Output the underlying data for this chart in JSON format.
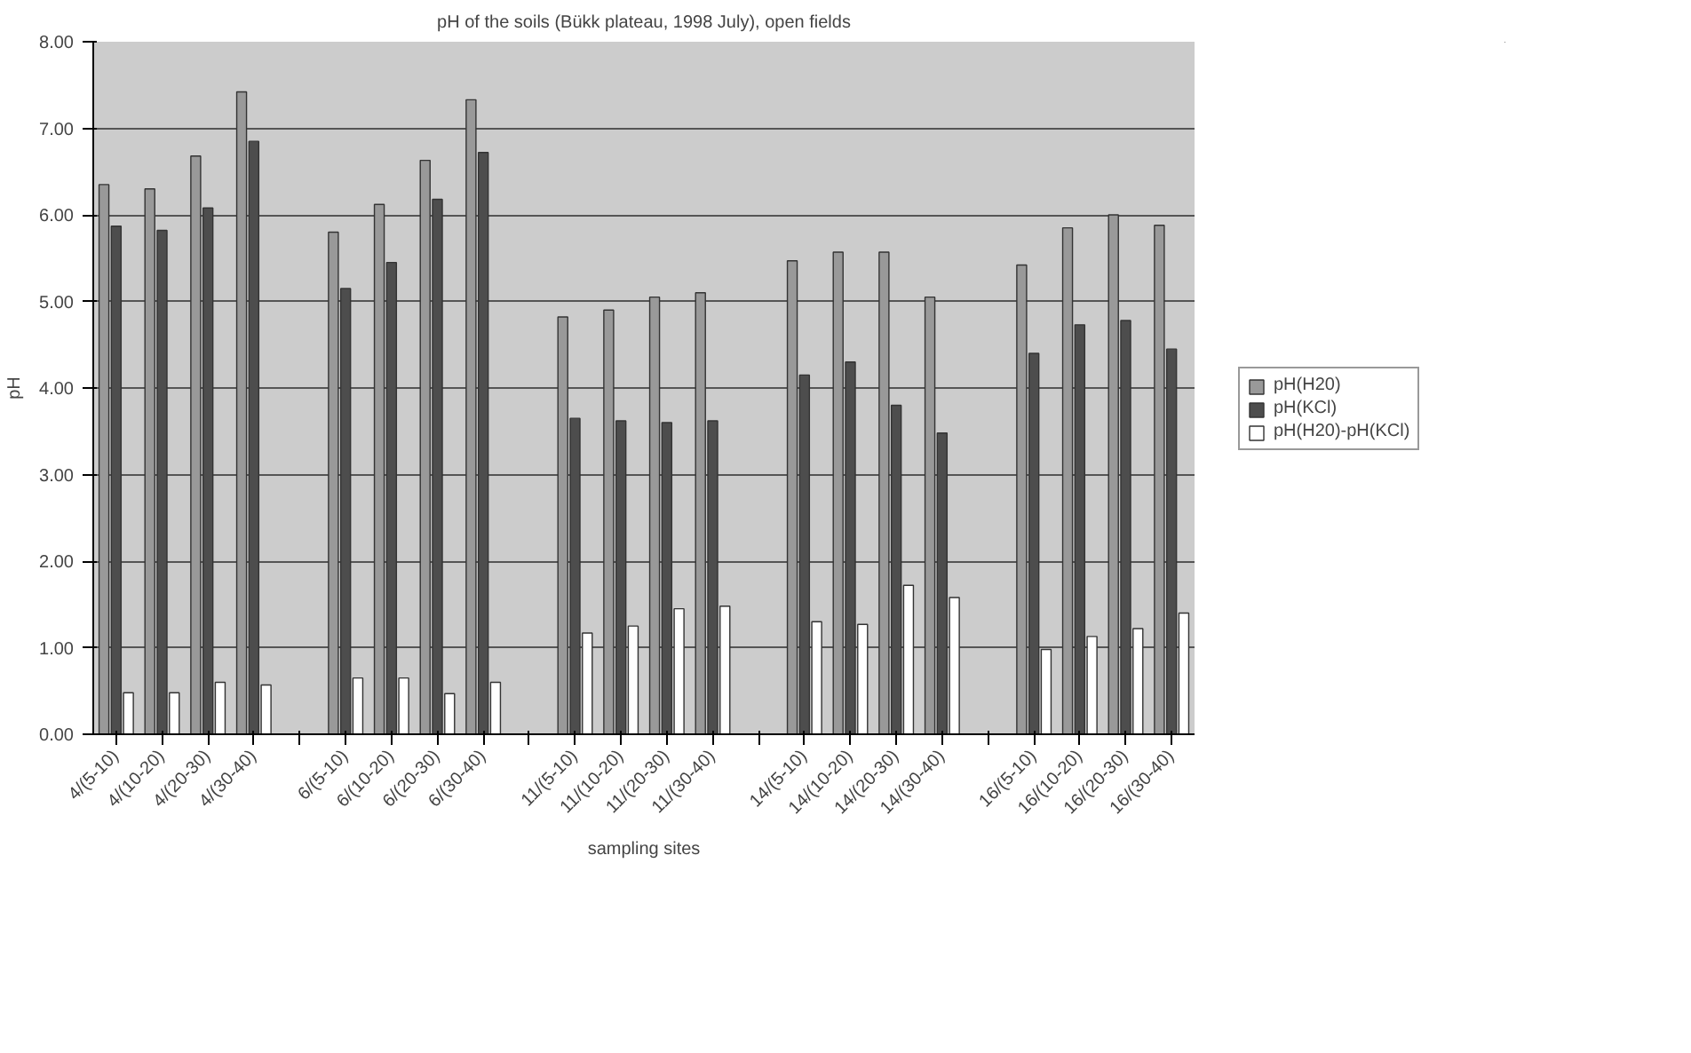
{
  "chart_data": {
    "type": "bar",
    "title": "pH of the soils (Bükk plateau, 1998 July), open fields",
    "xlabel": "sampling sites",
    "ylabel": "pH",
    "categories": [
      "4/(5-10)",
      "4/(10-20)",
      "4/(20-30)",
      "4/(30-40)",
      null,
      "6/(5-10)",
      "6/(10-20)",
      "6/(20-30)",
      "6/(30-40)",
      null,
      "11/(5-10)",
      "11/(10-20)",
      "11/(20-30)",
      "11/(30-40)",
      null,
      "14/(5-10)",
      "14/(10-20)",
      "14/(20-30)",
      "14/(30-40)",
      null,
      "16/(5-10)",
      "16/(10-20)",
      "16/(20-30)",
      "16/(30-40)"
    ],
    "series": [
      {
        "name": "pH(H20)",
        "color": "#999999",
        "values": [
          6.35,
          6.3,
          6.68,
          7.42,
          null,
          5.8,
          6.12,
          6.63,
          7.33,
          null,
          4.82,
          4.9,
          5.05,
          5.1,
          null,
          5.47,
          5.57,
          5.57,
          5.05,
          null,
          5.42,
          5.85,
          6.0,
          5.88
        ]
      },
      {
        "name": "pH(KCl)",
        "color": "#4d4d4d",
        "values": [
          5.87,
          5.82,
          6.08,
          6.85,
          null,
          5.15,
          5.45,
          6.18,
          6.72,
          null,
          3.65,
          3.62,
          3.6,
          3.62,
          null,
          4.15,
          4.3,
          3.8,
          3.48,
          null,
          4.4,
          4.73,
          4.78,
          4.45
        ]
      },
      {
        "name": "pH(H20)-pH(KCl)",
        "color": "#ffffff",
        "values": [
          0.48,
          0.48,
          0.6,
          0.57,
          null,
          0.65,
          0.65,
          0.47,
          0.6,
          null,
          1.17,
          1.25,
          1.45,
          1.48,
          null,
          1.3,
          1.27,
          1.72,
          1.58,
          null,
          0.98,
          1.13,
          1.22,
          1.4
        ]
      }
    ],
    "ylim": [
      0,
      8
    ],
    "yticks": [
      {
        "value": 0,
        "label": "0.00"
      },
      {
        "value": 1,
        "label": "1.00"
      },
      {
        "value": 2,
        "label": "2.00"
      },
      {
        "value": 3,
        "label": "3.00"
      },
      {
        "value": 4,
        "label": "4.00"
      },
      {
        "value": 5,
        "label": "5.00"
      },
      {
        "value": 6,
        "label": "6.00"
      },
      {
        "value": 7,
        "label": "7.00"
      },
      {
        "value": 8,
        "label": "8.00"
      }
    ],
    "grid": "y",
    "legend": "right"
  }
}
